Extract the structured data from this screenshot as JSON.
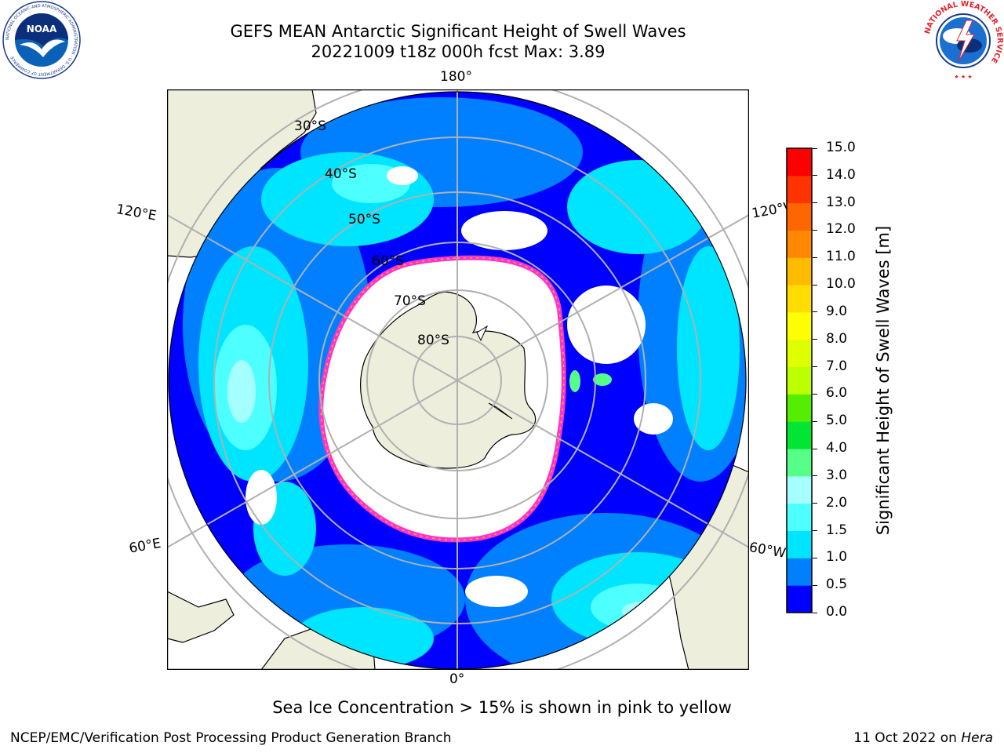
{
  "header": {
    "title_line1": "GEFS MEAN Antarctic Significant Height of Swell Waves",
    "title_line2": "20221009 t18z 000h fcst   Max: 3.89"
  },
  "logos": {
    "noaa_text": "NOAA",
    "noaa_ring": "NATIONAL OCEANIC AND ATMOSPHERIC ADMINISTRATION · U.S. DEPARTMENT OF COMMERCE",
    "nws_ring": "NATIONAL WEATHER SERVICE"
  },
  "map": {
    "projection": "south-polar-stereographic",
    "longitude_labels": [
      "180°",
      "120°E",
      "120°W",
      "60°E",
      "60°W",
      "0°"
    ],
    "latitude_labels": [
      "30°S",
      "40°S",
      "50°S",
      "60°S",
      "70°S",
      "80°S"
    ],
    "colors": {
      "ocean_base": "#0000ff",
      "land": "#eeeedd",
      "ice_fringe": "#ff33cc",
      "ice_interior": "#ffffff",
      "grid": "#b0b0b0"
    }
  },
  "colorbar": {
    "title": "Significant Height of Swell Waves [m]",
    "ticks": [
      "0.0",
      "0.5",
      "1.0",
      "1.5",
      "2.0",
      "3.0",
      "4.0",
      "5.0",
      "6.0",
      "7.0",
      "8.0",
      "9.0",
      "10.0",
      "11.0",
      "12.0",
      "13.0",
      "14.0",
      "15.0"
    ],
    "colors": [
      "#0000ff",
      "#0080ff",
      "#00e5ff",
      "#4dffff",
      "#a6ffff",
      "#55ff88",
      "#00e632",
      "#55ee00",
      "#bbff00",
      "#ddff00",
      "#ffff00",
      "#ffdd00",
      "#ffbb00",
      "#ff8800",
      "#ff6600",
      "#ff3300",
      "#ff0000"
    ]
  },
  "caption": "Sea Ice Concentration > 15% is shown in pink to yellow",
  "footer": {
    "left": "NCEP/EMC/Verification Post Processing Product Generation Branch",
    "right_prefix": "11 Oct 2022 on ",
    "right_italic": "Hera"
  }
}
